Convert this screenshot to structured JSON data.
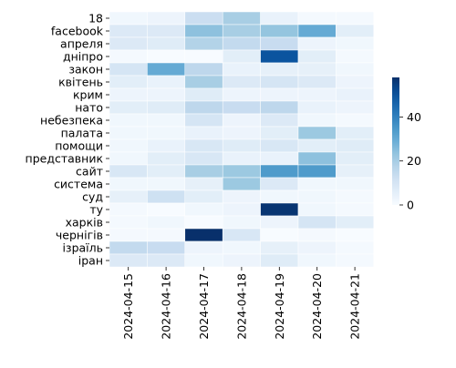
{
  "chart_data": {
    "type": "heatmap",
    "title": "",
    "xlabel": "",
    "ylabel": "",
    "x_categories": [
      "2024-04-15",
      "2024-04-16",
      "2024-04-17",
      "2024-04-18",
      "2024-04-19",
      "2024-04-20",
      "2024-04-21"
    ],
    "y_categories": [
      "18",
      "facebook",
      "апреля",
      "дніпро",
      "закон",
      "квітень",
      "крим",
      "нато",
      "небезпека",
      "палата",
      "помощи",
      "представник",
      "сайт",
      "система",
      "суд",
      "ту",
      "харків",
      "чернігів",
      "ізраїль",
      "іран"
    ],
    "values": [
      [
        2,
        3,
        13,
        20,
        4,
        1,
        1
      ],
      [
        8,
        8,
        24,
        20,
        23,
        30,
        6
      ],
      [
        8,
        7,
        18,
        15,
        14,
        3,
        2
      ],
      [
        1,
        0,
        0,
        6,
        50,
        6,
        1
      ],
      [
        10,
        30,
        16,
        4,
        5,
        5,
        2
      ],
      [
        6,
        4,
        20,
        8,
        10,
        8,
        3
      ],
      [
        3,
        3,
        7,
        3,
        3,
        3,
        4
      ],
      [
        6,
        7,
        16,
        14,
        16,
        4,
        3
      ],
      [
        2,
        2,
        10,
        3,
        8,
        2,
        1
      ],
      [
        2,
        2,
        4,
        3,
        6,
        22,
        6
      ],
      [
        2,
        4,
        9,
        7,
        9,
        6,
        7
      ],
      [
        2,
        6,
        9,
        4,
        4,
        24,
        6
      ],
      [
        9,
        6,
        20,
        22,
        34,
        34,
        5
      ],
      [
        2,
        2,
        5,
        22,
        8,
        2,
        2
      ],
      [
        5,
        12,
        6,
        3,
        2,
        2,
        1
      ],
      [
        1,
        0,
        2,
        3,
        57,
        2,
        1
      ],
      [
        1,
        2,
        0,
        2,
        3,
        10,
        6
      ],
      [
        1,
        1,
        58,
        9,
        0,
        1,
        0
      ],
      [
        15,
        14,
        3,
        2,
        5,
        3,
        1
      ],
      [
        8,
        8,
        2,
        3,
        7,
        2,
        1
      ]
    ],
    "colorbar": {
      "min": 0,
      "max": 58,
      "ticks": [
        0,
        20,
        40
      ],
      "colormap": "Blues",
      "placement": "right"
    },
    "grid": true
  }
}
